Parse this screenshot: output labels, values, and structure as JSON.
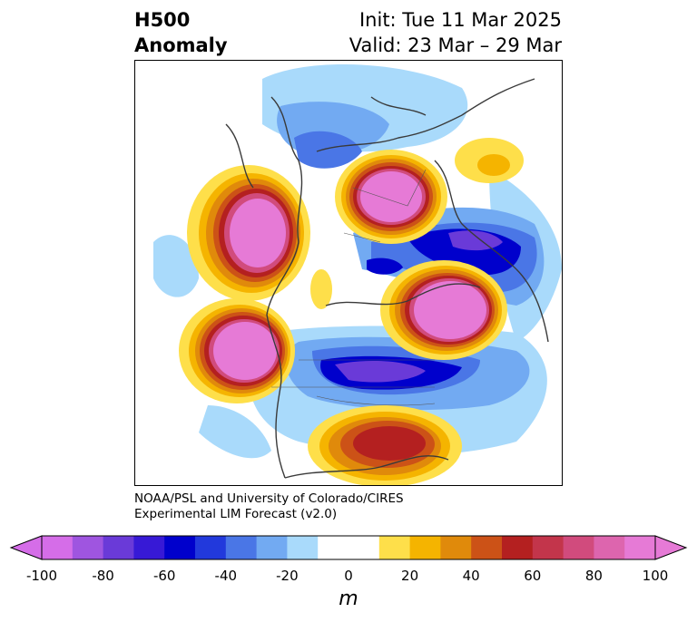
{
  "header": {
    "title_line1": "H500",
    "title_line2": "Anomaly",
    "init_text": "Init: Tue 11 Mar 2025",
    "valid_text": "Valid: 23 Mar – 29 Mar"
  },
  "credit": {
    "line1": "NOAA/PSL and University of Colorado/CIRES",
    "line2": "Experimental LIM Forecast (v2.0)"
  },
  "colorbar": {
    "unit": "m",
    "tick_labels": [
      "-100",
      "-80",
      "-60",
      "-40",
      "-20",
      "0",
      "20",
      "40",
      "60",
      "80",
      "100"
    ],
    "colors": [
      "#d56de8",
      "#9f55e0",
      "#6a3ad8",
      "#3719d6",
      "#0000cc",
      "#2239dc",
      "#4a76e6",
      "#72aaf2",
      "#a9dafb",
      "#ffffff",
      "#ffffff",
      "#fedf4a",
      "#f5b400",
      "#e08a0b",
      "#cc5217",
      "#b42020",
      "#c3354b",
      "#d14b7d",
      "#dd65ae",
      "#e67ad6"
    ],
    "below_color": "#d56de8",
    "above_color": "#e67ad6"
  }
}
